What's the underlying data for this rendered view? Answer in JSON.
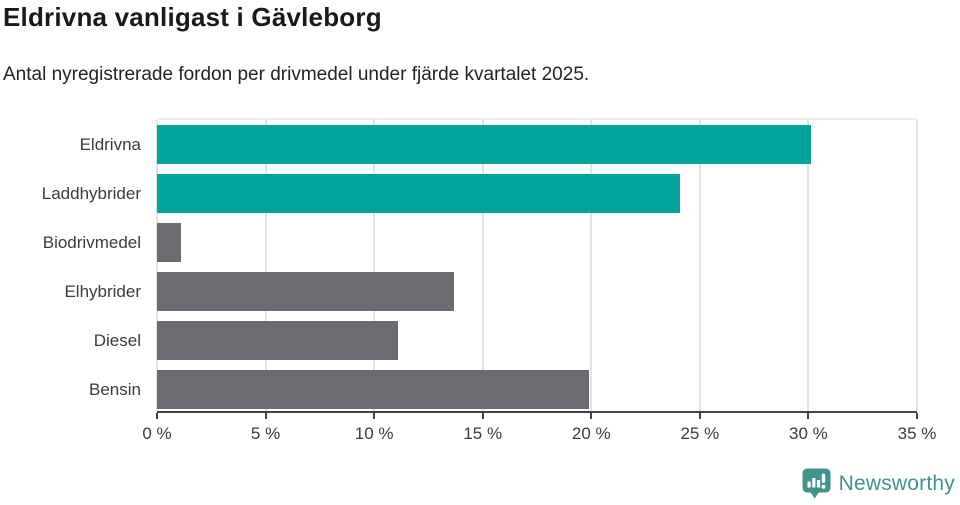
{
  "title": "Eldrivna vanligast i Gävleborg",
  "subtitle": "Antal nyregistrerade fordon per drivmedel under fjärde kvartalet 2025.",
  "chart_data": {
    "type": "bar",
    "orientation": "horizontal",
    "title": "Eldrivna vanligast i Gävleborg",
    "subtitle": "Antal nyregistrerade fordon per drivmedel under fjärde kvartalet 2025.",
    "categories": [
      "Eldrivna",
      "Laddhybrider",
      "Biodrivmedel",
      "Elhybrider",
      "Diesel",
      "Bensin"
    ],
    "values": [
      30.1,
      24.1,
      1.1,
      13.7,
      11.1,
      19.9
    ],
    "unit": "%",
    "xlim": [
      0,
      35
    ],
    "x_ticks": [
      0,
      5,
      10,
      15,
      20,
      25,
      30,
      35
    ],
    "x_tick_labels": [
      "0 %",
      "5 %",
      "10 %",
      "15 %",
      "20 %",
      "25 %",
      "30 %",
      "35 %"
    ],
    "bar_colors": [
      "#00a49b",
      "#00a49b",
      "#6b6b71",
      "#6b6b71",
      "#6b6b71",
      "#6b6b71"
    ],
    "highlight_color": "#00a49b",
    "default_color": "#6b6b71",
    "grid": true,
    "legend": "none",
    "xlabel": "",
    "ylabel": ""
  },
  "colors": {
    "teal": "#00a49b",
    "gray": "#6b6b71",
    "axis": "#434343",
    "gridline": "#e3e3e3",
    "logo": "#3f948e"
  },
  "branding": {
    "logo_text": "Newsworthy",
    "logo_icon": "bar-chart-speech-bubble-icon"
  }
}
